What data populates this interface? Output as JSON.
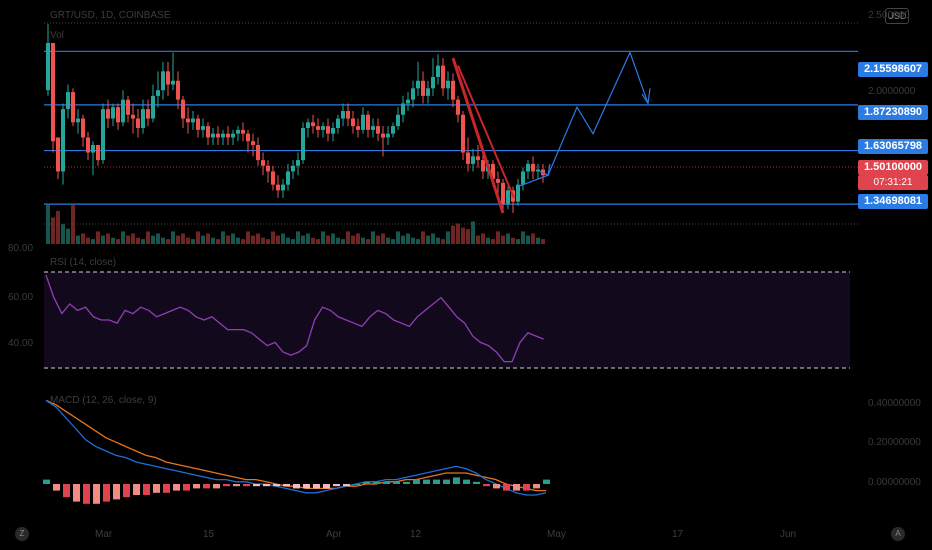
{
  "header": {
    "symbol_title": "GRT/USD, 1D, COINBASE",
    "series_label": "Vol",
    "currency_button": "USD"
  },
  "price_axis": {
    "top_label": "2.500000",
    "mid_label": "2.0000000",
    "tags": [
      {
        "value": "2.15598607",
        "kind": "level"
      },
      {
        "value": "1.87230890",
        "kind": "level"
      },
      {
        "value": "1.63065798",
        "kind": "level"
      },
      {
        "value": "1.50100000",
        "kind": "last"
      },
      {
        "value": "07:31:21",
        "kind": "countdown"
      },
      {
        "value": "1.34698081",
        "kind": "level"
      }
    ]
  },
  "rsi_pane": {
    "title": "RSI (14, close)",
    "left_labels": [
      "80.00",
      "60.00",
      "40.00"
    ]
  },
  "macd_pane": {
    "title": "MACD (12, 26, close, 9)",
    "right_labels": [
      "0.40000000",
      "0.20000000",
      "0.00000000"
    ]
  },
  "time_axis": {
    "labels": [
      "Mar",
      "15",
      "Apr",
      "12",
      "May",
      "17",
      "Jun"
    ]
  },
  "corner_buttons": {
    "left": "Z",
    "right": "A"
  },
  "colors": {
    "up": "#26a69a",
    "down": "#ef5350",
    "level_line": "#2b7be4",
    "trend_line": "#c8262d",
    "rsi_line": "#8e3fb5",
    "macd_line": "#1e6fd9",
    "signal_line": "#e8741d"
  },
  "chart_data": {
    "type": "candlestick",
    "price_levels": [
      2.15598607,
      1.8723089,
      1.63065798,
      1.34698081
    ],
    "last_price": 1.501,
    "rsi_bands": [
      70,
      30
    ],
    "macd_zero": 0
  }
}
